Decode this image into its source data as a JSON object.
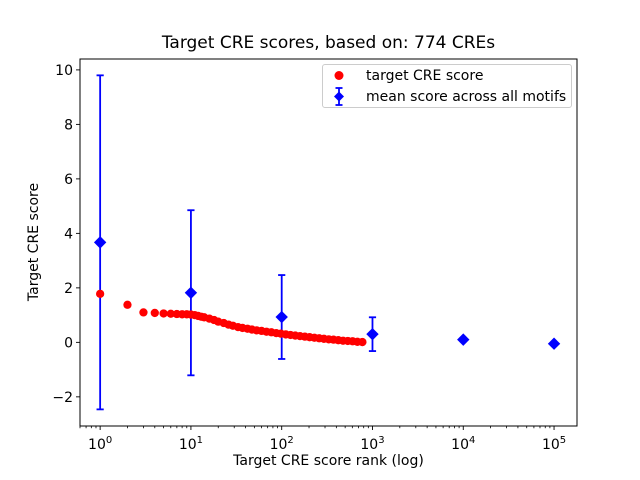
{
  "chart_data": {
    "type": "scatter",
    "title": "Target CRE scores, based on: 774 CREs",
    "xlabel": "Target CRE score rank (log)",
    "ylabel": "Target CRE score",
    "xscale": "log",
    "xlim": [
      0.6,
      179000
    ],
    "ylim": [
      -3.07,
      10.4
    ],
    "xticks": [
      1,
      10,
      100,
      1000,
      10000,
      100000
    ],
    "xtick_exponents": [
      "0",
      "1",
      "2",
      "3",
      "4",
      "5"
    ],
    "xtick_base": "10",
    "yticks": [
      -2,
      0,
      2,
      4,
      6,
      8,
      10
    ],
    "ytick_labels": [
      "−2",
      "0",
      "2",
      "4",
      "6",
      "8",
      "10"
    ],
    "grid": false,
    "colors": {
      "target": "#ff0000",
      "mean": "#0000ff",
      "axis": "#000000",
      "legend_border": "#cccccc"
    },
    "legend": {
      "position": "upper right",
      "entries": [
        {
          "label": "target CRE score",
          "color": "#ff0000",
          "marker": "circle"
        },
        {
          "label": "mean score across all motifs",
          "color": "#0000ff",
          "marker": "diamond-errorbar"
        }
      ]
    },
    "series": [
      {
        "name": "target CRE score",
        "marker": "circle",
        "color": "#ff0000",
        "points": [
          [
            1,
            1.78
          ],
          [
            2,
            1.38
          ],
          [
            3,
            1.1
          ],
          [
            4,
            1.08
          ],
          [
            5,
            1.06
          ],
          [
            6,
            1.05
          ],
          [
            7,
            1.04
          ],
          [
            8,
            1.03
          ],
          [
            9,
            1.03
          ],
          [
            10,
            1.02
          ],
          [
            11,
            1.0
          ],
          [
            12,
            0.97
          ],
          [
            13,
            0.94
          ],
          [
            14,
            0.92
          ],
          [
            16,
            0.87
          ],
          [
            18,
            0.82
          ],
          [
            20,
            0.76
          ],
          [
            23,
            0.71
          ],
          [
            26,
            0.65
          ],
          [
            29,
            0.61
          ],
          [
            33,
            0.56
          ],
          [
            37,
            0.53
          ],
          [
            42,
            0.5
          ],
          [
            47,
            0.47
          ],
          [
            53,
            0.44
          ],
          [
            60,
            0.42
          ],
          [
            68,
            0.39
          ],
          [
            77,
            0.37
          ],
          [
            87,
            0.34
          ],
          [
            98,
            0.32
          ],
          [
            111,
            0.29
          ],
          [
            125,
            0.27
          ],
          [
            141,
            0.25
          ],
          [
            159,
            0.23
          ],
          [
            180,
            0.21
          ],
          [
            203,
            0.19
          ],
          [
            229,
            0.17
          ],
          [
            259,
            0.15
          ],
          [
            292,
            0.13
          ],
          [
            330,
            0.11
          ],
          [
            372,
            0.1
          ],
          [
            420,
            0.08
          ],
          [
            474,
            0.06
          ],
          [
            535,
            0.05
          ],
          [
            604,
            0.04
          ],
          [
            682,
            0.02
          ],
          [
            774,
            0.01
          ]
        ]
      },
      {
        "name": "mean score across all motifs",
        "marker": "diamond",
        "color": "#0000ff",
        "points": [
          [
            1,
            3.67
          ],
          [
            10,
            1.82
          ],
          [
            100,
            0.93
          ],
          [
            1000,
            0.3
          ],
          [
            10000,
            0.1
          ],
          [
            100000,
            -0.05
          ]
        ],
        "yerr": [
          6.13,
          3.03,
          1.54,
          0.62,
          0,
          0
        ]
      }
    ]
  }
}
